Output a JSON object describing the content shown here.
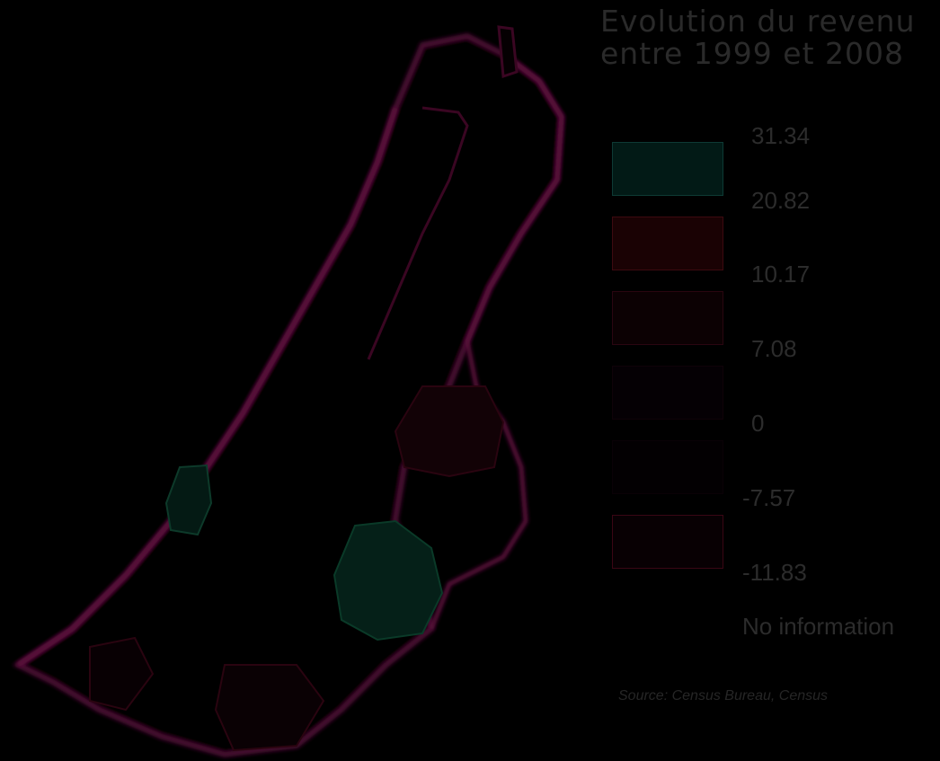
{
  "title": {
    "line1": "Evolution du revenu",
    "line2": "entre 1999 et 2008"
  },
  "legend": {
    "breaks": [
      "31.34",
      "20.82",
      "10.17",
      "7.08",
      "0",
      "-7.57",
      "-11.83"
    ],
    "no_info_label": "No information",
    "classes": [
      {
        "range": "20.82 – 31.34",
        "fill": "#021a16",
        "border": "#0d3a34"
      },
      {
        "range": "10.17 – 20.82",
        "fill": "#1a0204",
        "border": "#3d0a10"
      },
      {
        "range": "7.08 – 10.17",
        "fill": "#0c0103",
        "border": "#2a0610"
      },
      {
        "range": "0 – 7.08",
        "fill": "#050004",
        "border": "#0f0208"
      },
      {
        "range": "-7.57 – 0",
        "fill": "#030002",
        "border": "#0a0106"
      },
      {
        "range": "-11.83 – -7.57",
        "fill": "#080003",
        "border": "#3a0614"
      }
    ]
  },
  "source": "Source: Census Bureau, Census",
  "colors": {
    "background": "#000000",
    "coast": "#5a0a3a",
    "highlight": "#0a2a1e",
    "text": "#2c2c2c"
  }
}
